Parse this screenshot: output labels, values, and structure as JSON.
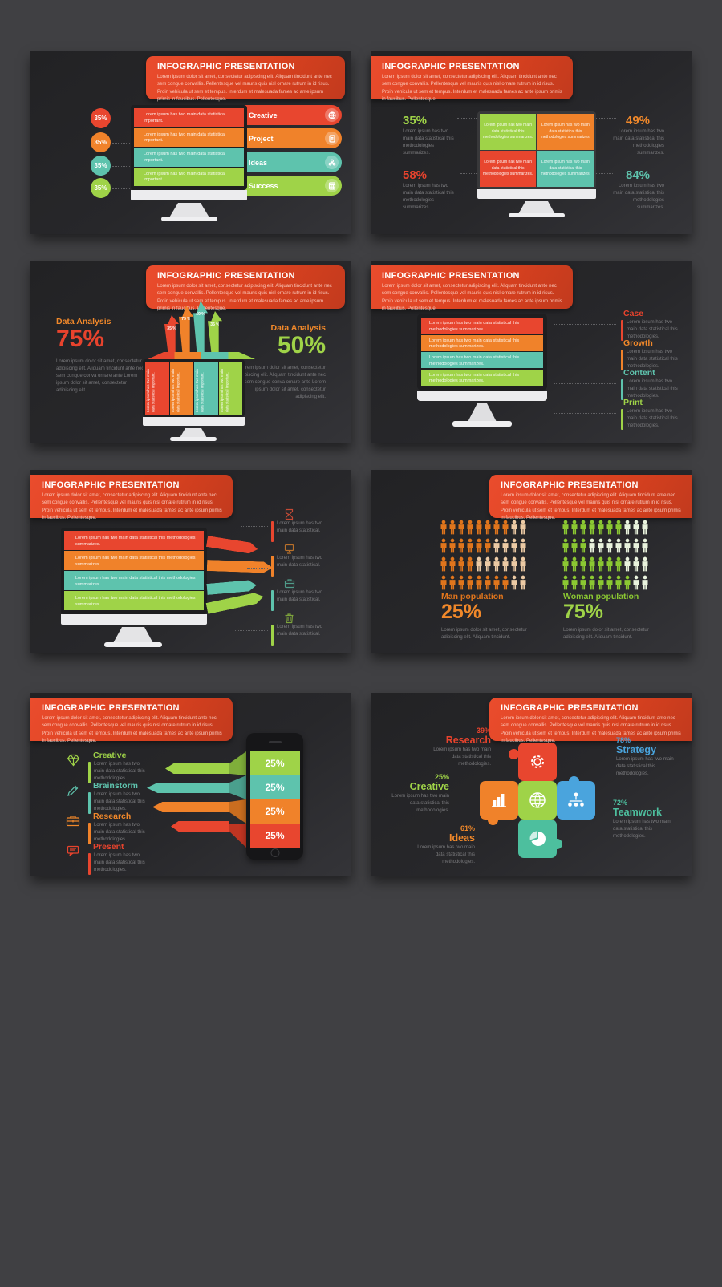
{
  "palette": {
    "red": "#e8432d",
    "orange": "#f0882a",
    "teal": "#5fc4ae",
    "green": "#9fd348",
    "blue": "#4aa4dd",
    "seafoam": "#4dbf9e",
    "banner_red_start": "#ea4c2d",
    "banner_red_end": "#c23a1e",
    "slide_bg": "#27272a",
    "page_bg": "#404043",
    "man_fill": "#e0751c",
    "man_fade": "#eccaa4",
    "woman_fill": "#8bc832",
    "woman_fade": "#e9f3dd"
  },
  "banner": {
    "title": "INFOGRAPHIC PRESENTATION",
    "body": "Lorem ipsum dolor sit amet, consectetur adipiscing elit. Aliquam tincidunt ante nec sem congue convallis. Pellentesque vel mauris quis nisl ornare rutrum in id risus. Proin vehicula ut sem et tempus. Interdum et malesuada fames ac ante ipsum primis in faucibus. Pellentesque."
  },
  "slide1": {
    "stats": [
      {
        "value": "35%"
      },
      {
        "value": "35%"
      },
      {
        "value": "35%"
      },
      {
        "value": "35%"
      }
    ],
    "bars": [
      {
        "text": "Lorem ipsum has two main data statistical important."
      },
      {
        "text": "Lorem ipsum has two main data statistical important."
      },
      {
        "text": "Lorem ipsum has two main data statistical important."
      },
      {
        "text": "Lorem ipsum has two main data statistical important."
      }
    ],
    "pills": [
      {
        "label": "Creative",
        "icon": "globe-icon"
      },
      {
        "label": "Project",
        "icon": "document-icon"
      },
      {
        "label": "Ideas",
        "icon": "people-icon"
      },
      {
        "label": "Success",
        "icon": "calculator-icon"
      }
    ]
  },
  "slide2": {
    "quads": [
      {
        "text": "Lorem ipsum has two main data statistical this methodologies summarizes."
      },
      {
        "text": "Lorem ipsum has two main data statistical this methodologies summarizes."
      },
      {
        "text": "Lorem ipsum has two main data statistical this methodologies summarizes."
      },
      {
        "text": "Lorem ipsum has two main data statistical this methodologies summarizes."
      }
    ],
    "stats": [
      {
        "value": "35%",
        "caption": "Lorem ipsum has two main data statistical this methodologies summarizes."
      },
      {
        "value": "49%",
        "caption": "Lorem ipsum has two main data statistical this methodologies summarizes."
      },
      {
        "value": "58%",
        "caption": "Lorem ipsum has two main data statistical this methodologies summarizes."
      },
      {
        "value": "84%",
        "caption": "Lorem ipsum has two main data statistical this methodologies summarizes."
      }
    ]
  },
  "slide3": {
    "left": {
      "label": "Data Analysis",
      "value": "75%",
      "caption": "Lorem ipsum dolor sit amet, consectetur adipiscing elit. Aliquam tincidunt ante nec sem congue conva ornare ante Lorem ipsum dolor sit amet, consectetur adipiscing elit."
    },
    "right": {
      "label": "Data Analysis",
      "value": "50%",
      "caption": "Lorem ipsum dolor sit amet, consectetur adipiscing elit. Aliquam tincidunt ante nec sem congue conva ornare ante Lorem ipsum dolor sit amet, consectetur adipiscing elit."
    },
    "arrows": [
      {
        "value": "35 %"
      },
      {
        "value": "75 %"
      },
      {
        "value": "59 %"
      },
      {
        "value": "35 %"
      }
    ],
    "columns": [
      {
        "text": "Lorem ipsum has two main data statistical important."
      },
      {
        "text": "Lorem ipsum has two main data statistical important."
      },
      {
        "text": "Lorem ipsum has two main data statistical important."
      },
      {
        "text": "Lorem ipsum has two main data statistical important."
      }
    ]
  },
  "slide4": {
    "bars": [
      {
        "text": "Lorem ipsum has two main data statistical this methodologies summarizes."
      },
      {
        "text": "Lorem ipsum has two main data statistical this methodologies summarizes."
      },
      {
        "text": "Lorem ipsum has two main data statistical this methodologies summarizes."
      },
      {
        "text": "Lorem ipsum has two main data statistical this methodologies summarizes."
      }
    ],
    "items": [
      {
        "label": "Case",
        "caption": "Lorem ipsum has two main data statistical this methodologies."
      },
      {
        "label": "Growth",
        "caption": "Lorem ipsum has two main data statistical this methodologies."
      },
      {
        "label": "Content",
        "caption": "Lorem ipsum has two main data statistical this methodologies."
      },
      {
        "label": "Print",
        "caption": "Lorem ipsum has two main data statistical this methodologies."
      }
    ]
  },
  "slide5": {
    "bars": [
      {
        "text": "Lorem ipsum has two main data statistical this methodologies summarizes."
      },
      {
        "text": "Lorem ipsum has two main data statistical this methodologies summarizes."
      },
      {
        "text": "Lorem ipsum has two main data statistical this methodologies summarizes."
      },
      {
        "text": "Lorem ipsum has two main data statistical this methodologies summarizes."
      }
    ],
    "items": [
      {
        "icon": "hourglass-icon",
        "caption": "Lorem ipsum has two main data statistical."
      },
      {
        "icon": "display-icon",
        "caption": "Lorem ipsum has two main data statistical."
      },
      {
        "icon": "briefcase-icon",
        "caption": "Lorem ipsum has two main data statistical."
      },
      {
        "icon": "trash-icon",
        "caption": "Lorem ipsum has two main data statistical."
      }
    ]
  },
  "slide6": {
    "man": {
      "label": "Man population",
      "value": "25%",
      "caption": "Lorem ipsum dolor sit amet, consectetur adipiscing elit. Aliquam tincidunt.",
      "rows": [
        8,
        6,
        4,
        8
      ],
      "per_row": 10,
      "color": "#e0751c",
      "fade": "#eccaa4"
    },
    "woman": {
      "label": "Woman population",
      "value": "75%",
      "caption": "Lorem ipsum dolor sit amet, consectetur adipiscing elit. Aliquam tincidunt.",
      "rows": [
        7,
        3,
        7,
        8
      ],
      "per_row": 10,
      "color": "#8bc832",
      "fade": "#e9f3dd"
    }
  },
  "slide7": {
    "items": [
      {
        "label": "Creative",
        "icon": "diamond-icon",
        "caption": "Lorem ipsum has two main data statistical this methodologies."
      },
      {
        "label": "Brainstorm",
        "icon": "pencil-icon",
        "caption": "Lorem ipsum has two main data statistical this methodologies."
      },
      {
        "label": "Research",
        "icon": "briefcase-icon",
        "caption": "Lorem ipsum has two main data statistical this methodologies."
      },
      {
        "label": "Present",
        "icon": "presentation-icon",
        "caption": "Lorem ipsum has two main data statistical this methodologies."
      }
    ],
    "phone_rows": [
      {
        "value": "25%"
      },
      {
        "value": "25%"
      },
      {
        "value": "25%"
      },
      {
        "value": "25%"
      }
    ]
  },
  "slide8": {
    "labels": [
      {
        "value": "39%",
        "name": "Research",
        "caption": "Lorem ipsum has two main data statistical this methodologies."
      },
      {
        "value": "78%",
        "name": "Strategy",
        "caption": "Lorem ipsum has two main data statistical this methodologies."
      },
      {
        "value": "25%",
        "name": "Creative",
        "caption": "Lorem ipsum has two main data statistical this methodologies."
      },
      {
        "value": "61%",
        "name": "Ideas",
        "caption": "Lorem ipsum has two main data statistical this methodologies."
      },
      {
        "value": "72%",
        "name": "Teamwork",
        "caption": "Lorem ipsum has two main data statistical this methodologies."
      }
    ],
    "piece_icons": [
      "gear-icon",
      "bar-chart-icon",
      "globe-icon",
      "hierarchy-icon",
      "pie-chart-icon"
    ]
  }
}
